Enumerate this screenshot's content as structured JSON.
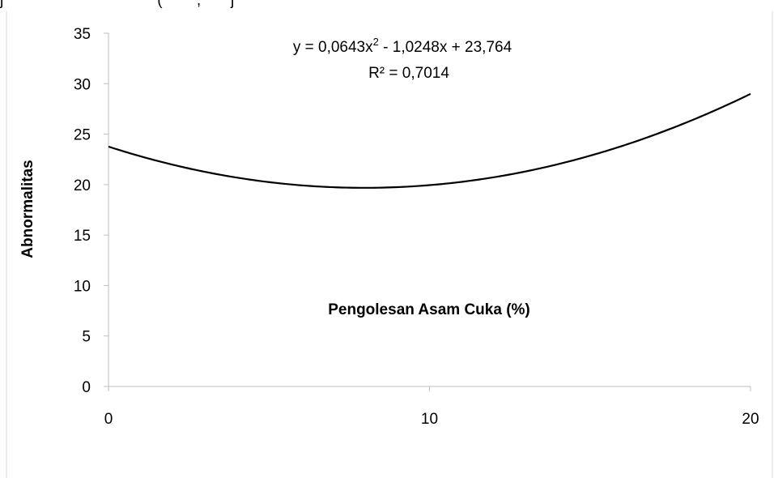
{
  "cropped_header": "j                                    (        ,       j",
  "chart_data": {
    "type": "line",
    "title": "",
    "xlabel": "Pengolesan Asam Cuka (%)",
    "ylabel": "Abnormalitas",
    "xlim": [
      0,
      20
    ],
    "ylim": [
      0,
      35
    ],
    "x_ticks": [
      "0",
      "10",
      "20"
    ],
    "y_ticks": [
      "0",
      "5",
      "10",
      "15",
      "20",
      "25",
      "30",
      "35"
    ],
    "grid": false,
    "legend": "none",
    "series": [
      {
        "coefficients": {
          "a": 0.0643,
          "b": -1.0248,
          "c": 23.764
        },
        "x": [
          0,
          2,
          4,
          6,
          8,
          10,
          12,
          14,
          16,
          18,
          20
        ],
        "y": [
          23.76,
          21.97,
          20.69,
          19.93,
          19.68,
          19.95,
          20.73,
          22.03,
          23.85,
          26.18,
          29.03
        ]
      }
    ],
    "trendline_equation": "y = 0,0643x² - 1,0248x + 23,764",
    "r_squared_label": "R² = 0,7014"
  },
  "colors": {
    "line": "#000000",
    "axis": "#bfbfbf",
    "frame": "#d9d9d9"
  }
}
